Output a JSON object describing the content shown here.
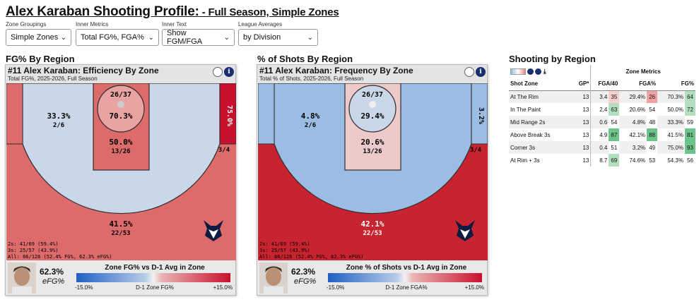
{
  "page": {
    "title_main": "Alex Karaban Shooting Profile:",
    "title_sub": " - Full Season, Simple Zones"
  },
  "controls": [
    {
      "label": "Zone Groupings",
      "value": "Simple Zones"
    },
    {
      "label": "Inner Metrics",
      "value": "Total FG%, FGA%"
    },
    {
      "label": "Inner Text",
      "value": "Show FGM/FGA"
    },
    {
      "label": "League Averages",
      "value": "by Division"
    }
  ],
  "sections": {
    "left": "FG% By Region",
    "mid": "% of Shots By Region",
    "right": "Shooting by Region"
  },
  "colors": {
    "red_strong": "#c8102e",
    "red_mid": "#dd6b6b",
    "red_light": "#eaa3a3",
    "pink": "#eccaca",
    "blue_light": "#c9d7e8",
    "blue_mid": "#9cbde3",
    "lines": "#2d2d2d"
  },
  "panel_eff": {
    "header": "#11 Alex Karaban: Efficiency By Zone",
    "subheader": "Total FG%, 2025-2026, Full Season",
    "zones": {
      "rim_frac": "26/37",
      "rim_pct": "70.3%",
      "paint_pct": "50.0%",
      "paint_frac": "13/26",
      "mid_pct": "33.3%",
      "mid_frac": "2/6",
      "corner_pct": "75.0%",
      "corner_frac": "3/4",
      "above_pct": "41.5%",
      "above_frac": "22/53"
    },
    "stats": [
      "2s: 41/69 (59.4%)",
      "3s: 25/57 (43.9%)",
      "All: 66/126 (52.4% FG%, 62.3% eFG%)"
    ],
    "efg_value": "62.3%",
    "efg_label": "eFG%",
    "legend_title": "Zone FG% vs D-1 Avg in Zone",
    "legend_min": "-15.0%",
    "legend_mid": "D-1 Zone FG%",
    "legend_max": "+15.0%"
  },
  "panel_freq": {
    "header": "#11 Alex Karaban: Frequency By Zone",
    "subheader": "Total % of Shots, 2025-2026, Full Season",
    "zones": {
      "rim_frac": "26/37",
      "rim_pct": "29.4%",
      "paint_pct": "20.6%",
      "paint_frac": "13/26",
      "mid_pct": "4.8%",
      "mid_frac": "2/6",
      "corner_pct": "3.2%",
      "corner_frac": "3/4",
      "above_pct": "42.1%",
      "above_frac": "22/53"
    },
    "stats": [
      "2s: 41/69 (59.4%)",
      "3s: 25/57 (43.9%)",
      "All: 66/126 (52.4% FG%, 62.3% eFG%)"
    ],
    "efg_value": "62.3%",
    "efg_label": "eFG%",
    "legend_title": "Zone % of Shots vs D-1 Avg in Zone",
    "legend_min": "-15.0%",
    "legend_mid": "D-1 Zone FGA%",
    "legend_max": "+15.0%"
  },
  "table": {
    "group_header": "Zone Metrics",
    "headers": [
      "Shot Zone",
      "GP*",
      "FGA/40",
      "FGA%",
      "FG%"
    ],
    "rows": [
      {
        "zone": "At The Rim",
        "gp": "13",
        "fga40": "3.4",
        "fga40_rk": "35",
        "fgapct": "29.4%",
        "fgapct_rk": "26",
        "fgpct": "70.3%",
        "fgpct_rk": "64"
      },
      {
        "zone": "In The Paint",
        "gp": "13",
        "fga40": "2.4",
        "fga40_rk": "63",
        "fgapct": "20.6%",
        "fgapct_rk": "54",
        "fgpct": "50.0%",
        "fgpct_rk": "72"
      },
      {
        "zone": "Mid Range 2s",
        "gp": "13",
        "fga40": "0.6",
        "fga40_rk": "54",
        "fgapct": "4.8%",
        "fgapct_rk": "48",
        "fgpct": "33.3%",
        "fgpct_rk": "59"
      },
      {
        "zone": "Above Break 3s",
        "gp": "13",
        "fga40": "4.9",
        "fga40_rk": "87",
        "fgapct": "42.1%",
        "fgapct_rk": "88",
        "fgpct": "41.5%",
        "fgpct_rk": "81"
      },
      {
        "zone": "Corner 3s",
        "gp": "13",
        "fga40": "0.4",
        "fga40_rk": "51",
        "fgapct": "3.2%",
        "fgapct_rk": "49",
        "fgpct": "75.0%",
        "fgpct_rk": "93"
      },
      {
        "zone": "At Rim + 3s",
        "gp": "13",
        "fga40": "8.7",
        "fga40_rk": "69",
        "fgapct": "74.6%",
        "fgapct_rk": "53",
        "fgpct": "54.3%",
        "fgpct_rk": "56"
      }
    ]
  },
  "chart_data": [
    {
      "type": "heatmap",
      "title": "#11 Alex Karaban: Efficiency By Zone",
      "subtitle": "Total FG%, 2025-2026, Full Season",
      "categories": [
        "At The Rim",
        "In The Paint",
        "Mid Range 2s",
        "Corner 3s",
        "Above Break 3s"
      ],
      "values": [
        70.3,
        50.0,
        33.3,
        75.0,
        41.5
      ],
      "made": [
        26,
        13,
        2,
        3,
        22
      ],
      "attempts": [
        37,
        26,
        6,
        4,
        53
      ]
    },
    {
      "type": "heatmap",
      "title": "#11 Alex Karaban: Frequency By Zone",
      "subtitle": "Total % of Shots, 2025-2026, Full Season",
      "categories": [
        "At The Rim",
        "In The Paint",
        "Mid Range 2s",
        "Corner 3s",
        "Above Break 3s"
      ],
      "values": [
        29.4,
        20.6,
        4.8,
        3.2,
        42.1
      ],
      "made": [
        26,
        13,
        2,
        3,
        22
      ],
      "attempts": [
        37,
        26,
        6,
        4,
        53
      ]
    }
  ]
}
